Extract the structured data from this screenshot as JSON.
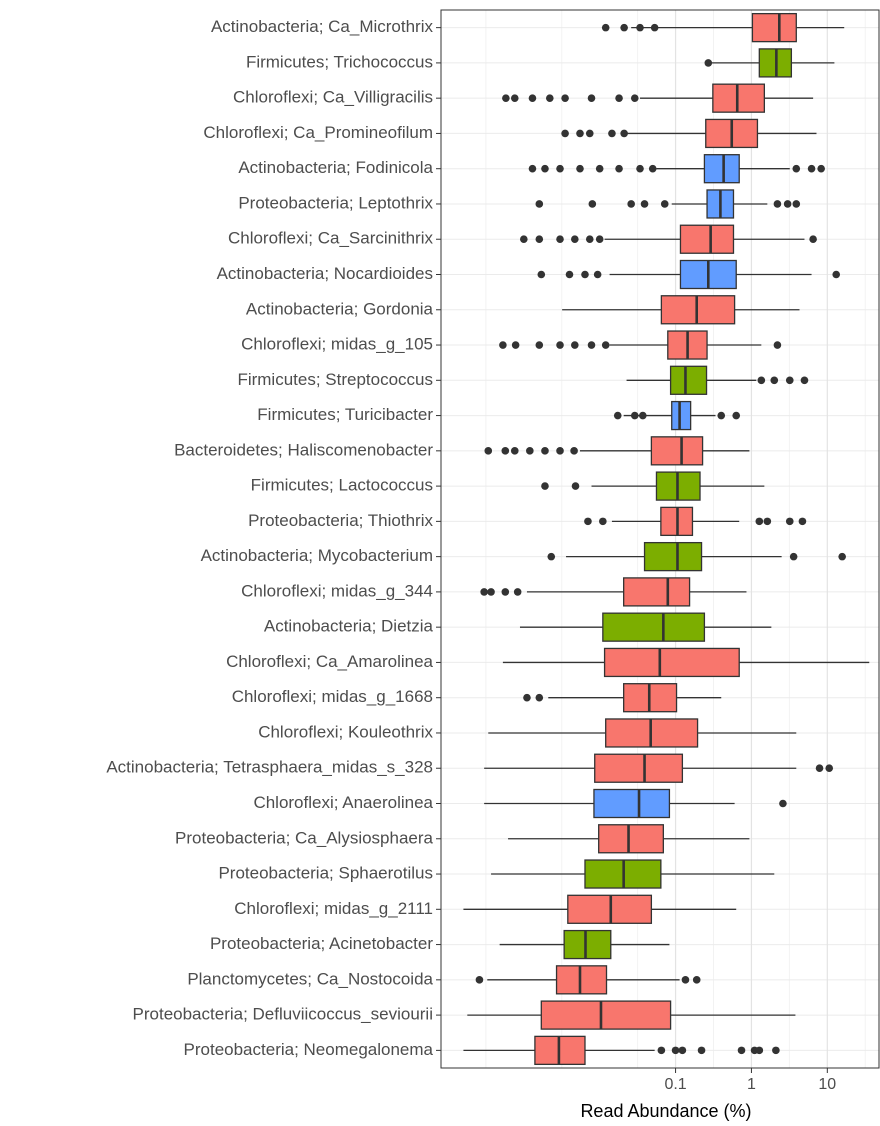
{
  "chart_data": {
    "type": "boxplot",
    "xscale": "log",
    "grid": true,
    "xlabel": "Read Abundance (%)",
    "xlim": [
      8.1e-05,
      48
    ],
    "xticks": [
      0.1,
      1,
      10
    ],
    "categories": [
      "Actinobacteria; Ca_Microthrix",
      "Firmicutes; Trichococcus",
      "Chloroflexi; Ca_Villigracilis",
      "Chloroflexi; Ca_Promineofilum",
      "Actinobacteria; Fodinicola",
      "Proteobacteria; Leptothrix",
      "Chloroflexi; Ca_Sarcinithrix",
      "Actinobacteria; Nocardioides",
      "Actinobacteria; Gordonia",
      "Chloroflexi; midas_g_105",
      "Firmicutes; Streptococcus",
      "Firmicutes; Turicibacter",
      "Bacteroidetes; Haliscomenobacter",
      "Firmicutes; Lactococcus",
      "Proteobacteria; Thiothrix",
      "Actinobacteria; Mycobacterium",
      "Chloroflexi; midas_g_344",
      "Actinobacteria; Dietzia",
      "Chloroflexi; Ca_Amarolinea",
      "Chloroflexi; midas_g_1668",
      "Chloroflexi; Kouleothrix",
      "Actinobacteria; Tetrasphaera_midas_s_328",
      "Chloroflexi; Anaerolinea",
      "Proteobacteria; Ca_Alysiosphaera",
      "Proteobacteria; Sphaerotilus",
      "Chloroflexi; midas_g_2111",
      "Proteobacteria; Acinetobacter",
      "Planctomycetes; Ca_Nostocoida",
      "Proteobacteria; Defluviicoccus_seviourii",
      "Proteobacteria; Neomegalonema"
    ],
    "colors": [
      "#F8766D",
      "#7CAE00",
      "#F8766D",
      "#F8766D",
      "#619CFF",
      "#619CFF",
      "#F8766D",
      "#619CFF",
      "#F8766D",
      "#F8766D",
      "#7CAE00",
      "#619CFF",
      "#F8766D",
      "#7CAE00",
      "#F8766D",
      "#7CAE00",
      "#F8766D",
      "#7CAE00",
      "#F8766D",
      "#F8766D",
      "#F8766D",
      "#F8766D",
      "#619CFF",
      "#F8766D",
      "#7CAE00",
      "#F8766D",
      "#7CAE00",
      "#F8766D",
      "#F8766D",
      "#F8766D"
    ],
    "whisker_low": [
      0.026,
      0.3,
      0.034,
      0.023,
      0.056,
      0.089,
      0.0116,
      0.0135,
      0.0032,
      0.0135,
      0.0226,
      0.0207,
      0.0055,
      0.0078,
      0.0145,
      0.0036,
      0.0011,
      0.00089,
      0.00053,
      0.0021,
      0.00034,
      0.0003,
      0.0003,
      0.00062,
      0.00037,
      0.00016,
      0.00048,
      0.00033,
      0.00018,
      0.00016
    ],
    "q1": [
      1.03,
      1.27,
      0.31,
      0.25,
      0.24,
      0.26,
      0.116,
      0.116,
      0.065,
      0.079,
      0.086,
      0.089,
      0.048,
      0.056,
      0.064,
      0.039,
      0.0207,
      0.011,
      0.0116,
      0.0207,
      0.012,
      0.0086,
      0.0084,
      0.0097,
      0.0064,
      0.0038,
      0.0034,
      0.0027,
      0.0017,
      0.0014
    ],
    "median": [
      2.33,
      2.13,
      0.65,
      0.55,
      0.43,
      0.39,
      0.29,
      0.27,
      0.19,
      0.144,
      0.135,
      0.113,
      0.12,
      0.106,
      0.106,
      0.106,
      0.079,
      0.069,
      0.062,
      0.045,
      0.047,
      0.039,
      0.033,
      0.024,
      0.0207,
      0.014,
      0.0065,
      0.0055,
      0.0104,
      0.0029
    ],
    "q3": [
      3.9,
      3.36,
      1.48,
      1.2,
      0.69,
      0.58,
      0.58,
      0.63,
      0.6,
      0.26,
      0.256,
      0.158,
      0.227,
      0.21,
      0.167,
      0.22,
      0.153,
      0.24,
      0.69,
      0.103,
      0.195,
      0.123,
      0.083,
      0.069,
      0.064,
      0.048,
      0.014,
      0.0123,
      0.086,
      0.0064
    ],
    "whisker_high": [
      16.7,
      12.4,
      6.5,
      7.2,
      3.2,
      1.62,
      5.0,
      6.2,
      4.3,
      1.35,
      1.16,
      0.336,
      0.94,
      1.48,
      0.69,
      2.5,
      0.86,
      1.83,
      35.7,
      0.4,
      3.9,
      3.9,
      0.6,
      0.94,
      2.0,
      0.63,
      0.083,
      0.113,
      3.8,
      0.053
    ],
    "outliers": [
      [
        0.012,
        0.021,
        0.034,
        0.053
      ],
      [
        0.27
      ],
      [
        0.00058,
        0.00076,
        0.0013,
        0.0022,
        0.0035,
        0.0078,
        0.018,
        0.029
      ],
      [
        0.0035,
        0.0055,
        0.0074,
        0.0145,
        0.021
      ],
      [
        0.0013,
        0.0019,
        0.003,
        0.0055,
        0.01,
        0.018,
        0.034,
        0.05,
        3.9,
        6.2,
        8.3
      ],
      [
        0.0016,
        0.008,
        0.026,
        0.039,
        0.072,
        2.2,
        3.0,
        3.9
      ],
      [
        0.001,
        0.0016,
        0.003,
        0.0047,
        0.0074,
        0.01,
        6.5
      ],
      [
        0.0017,
        0.004,
        0.0064,
        0.0094,
        13.1
      ],
      [],
      [
        0.00053,
        0.00078,
        0.0016,
        0.003,
        0.0047,
        0.0078,
        0.012,
        2.2
      ],
      [
        1.35,
        2.0,
        3.2,
        5.0
      ],
      [
        0.0173,
        0.029,
        0.037,
        0.4,
        0.63
      ],
      [
        0.00034,
        0.00057,
        0.00076,
        0.0012,
        0.0019,
        0.003,
        0.0046
      ],
      [
        0.0019,
        0.0048
      ],
      [
        0.007,
        0.011,
        1.27,
        1.62,
        3.2,
        4.7
      ],
      [
        0.0023,
        3.6,
        15.7
      ],
      [
        0.0003,
        0.00037,
        0.00057,
        0.00083
      ],
      [],
      [],
      [
        0.0011,
        0.0016
      ],
      [],
      [
        7.9,
        10.6
      ],
      [
        2.6
      ],
      [],
      [],
      [],
      [],
      [
        0.00026,
        0.135,
        0.19
      ],
      [],
      [
        0.065,
        0.1,
        0.123,
        0.22,
        0.74,
        1.1,
        1.27,
        2.1
      ]
    ]
  }
}
